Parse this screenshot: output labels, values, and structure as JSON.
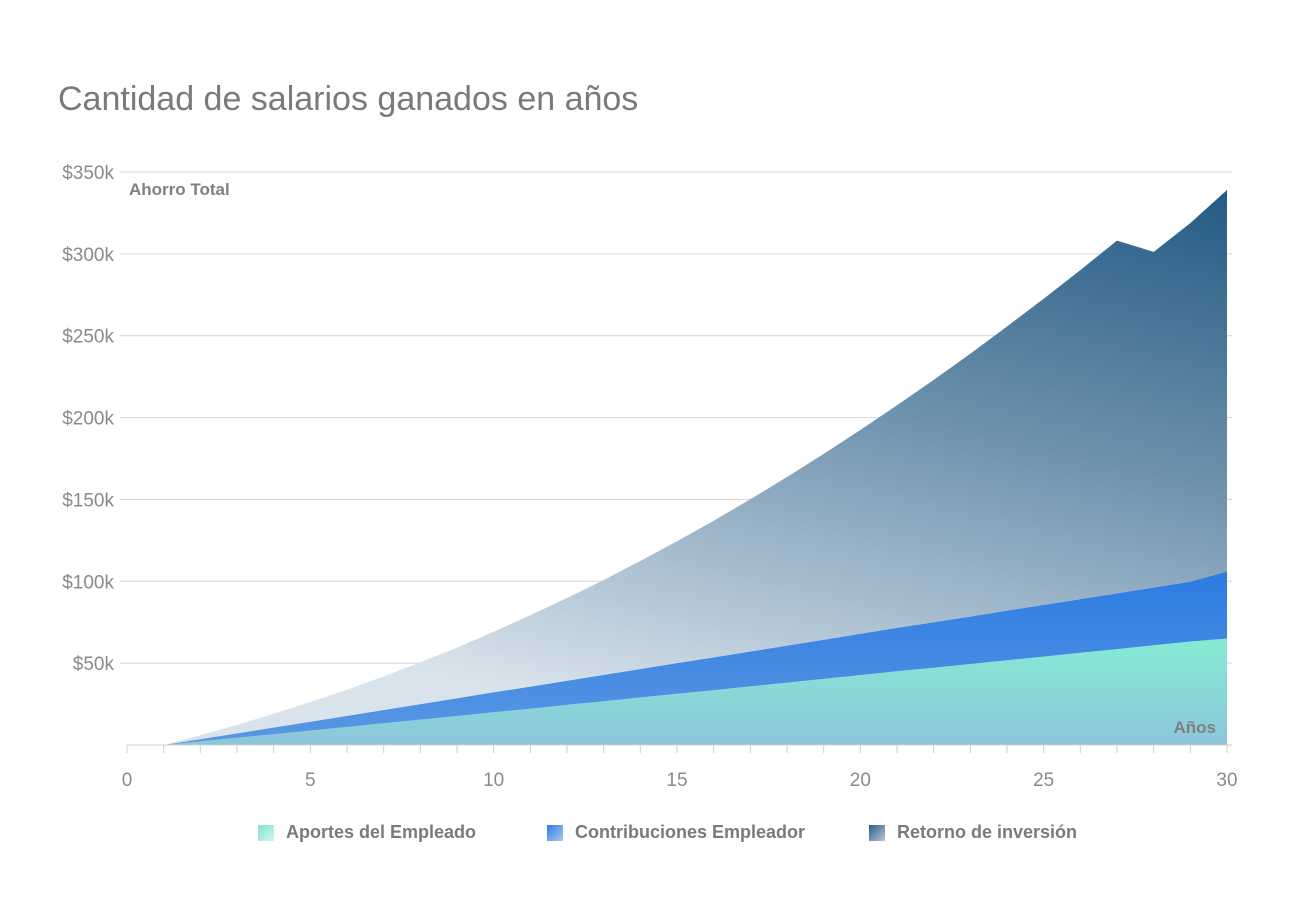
{
  "chart_data": {
    "type": "area",
    "stacked": true,
    "title": "Cantidad de salarios ganados en años",
    "ylabel": "Ahorro Total",
    "xlabel": "Años",
    "xlim": [
      0,
      30
    ],
    "ylim": [
      0,
      350000
    ],
    "x_ticks": [
      0,
      5,
      10,
      15,
      20,
      25,
      30
    ],
    "x_tick_labels": [
      "0",
      "5",
      "10",
      "15",
      "20",
      "25",
      "30"
    ],
    "y_ticks": [
      50000,
      100000,
      150000,
      200000,
      250000,
      300000,
      350000
    ],
    "y_tick_labels": [
      "$50k",
      "$100k",
      "$150k",
      "$200k",
      "$250k",
      "$300k",
      "$350k"
    ],
    "grid": true,
    "legend_position": "bottom",
    "x": [
      1,
      2,
      3,
      4,
      5,
      6,
      7,
      8,
      9,
      10,
      11,
      12,
      13,
      14,
      15,
      16,
      17,
      18,
      19,
      20,
      21,
      22,
      23,
      24,
      25,
      26,
      27,
      28,
      29,
      30
    ],
    "series": [
      {
        "name": "Aportes del Empleado",
        "color": "#7fe3d2",
        "values": [
          0,
          2200,
          4400,
          6600,
          8800,
          11000,
          13300,
          15500,
          17700,
          20000,
          22200,
          24500,
          26700,
          29000,
          31300,
          33500,
          35800,
          38100,
          40400,
          42700,
          45000,
          47200,
          49500,
          51800,
          54000,
          56300,
          58600,
          60900,
          63200,
          65000
        ]
      },
      {
        "name": "Contribuciones Empleador",
        "color": "#2e7de0",
        "values": [
          0,
          1400,
          2700,
          4100,
          5400,
          6800,
          8100,
          9500,
          10800,
          12200,
          13500,
          14800,
          16100,
          17400,
          18700,
          20000,
          21300,
          22600,
          23900,
          25200,
          26500,
          27800,
          29000,
          30300,
          31600,
          32800,
          34000,
          35300,
          36600,
          41000
        ]
      },
      {
        "name": "Retorno de inversión",
        "color": "#2a5c86",
        "values": [
          0,
          2400,
          5200,
          8400,
          12000,
          16000,
          20500,
          25500,
          31000,
          37000,
          43500,
          50500,
          58000,
          66000,
          74500,
          83500,
          93000,
          103000,
          113500,
          124500,
          136000,
          148000,
          160500,
          173500,
          187000,
          201000,
          215500,
          205000,
          219000,
          233000
        ]
      }
    ]
  }
}
